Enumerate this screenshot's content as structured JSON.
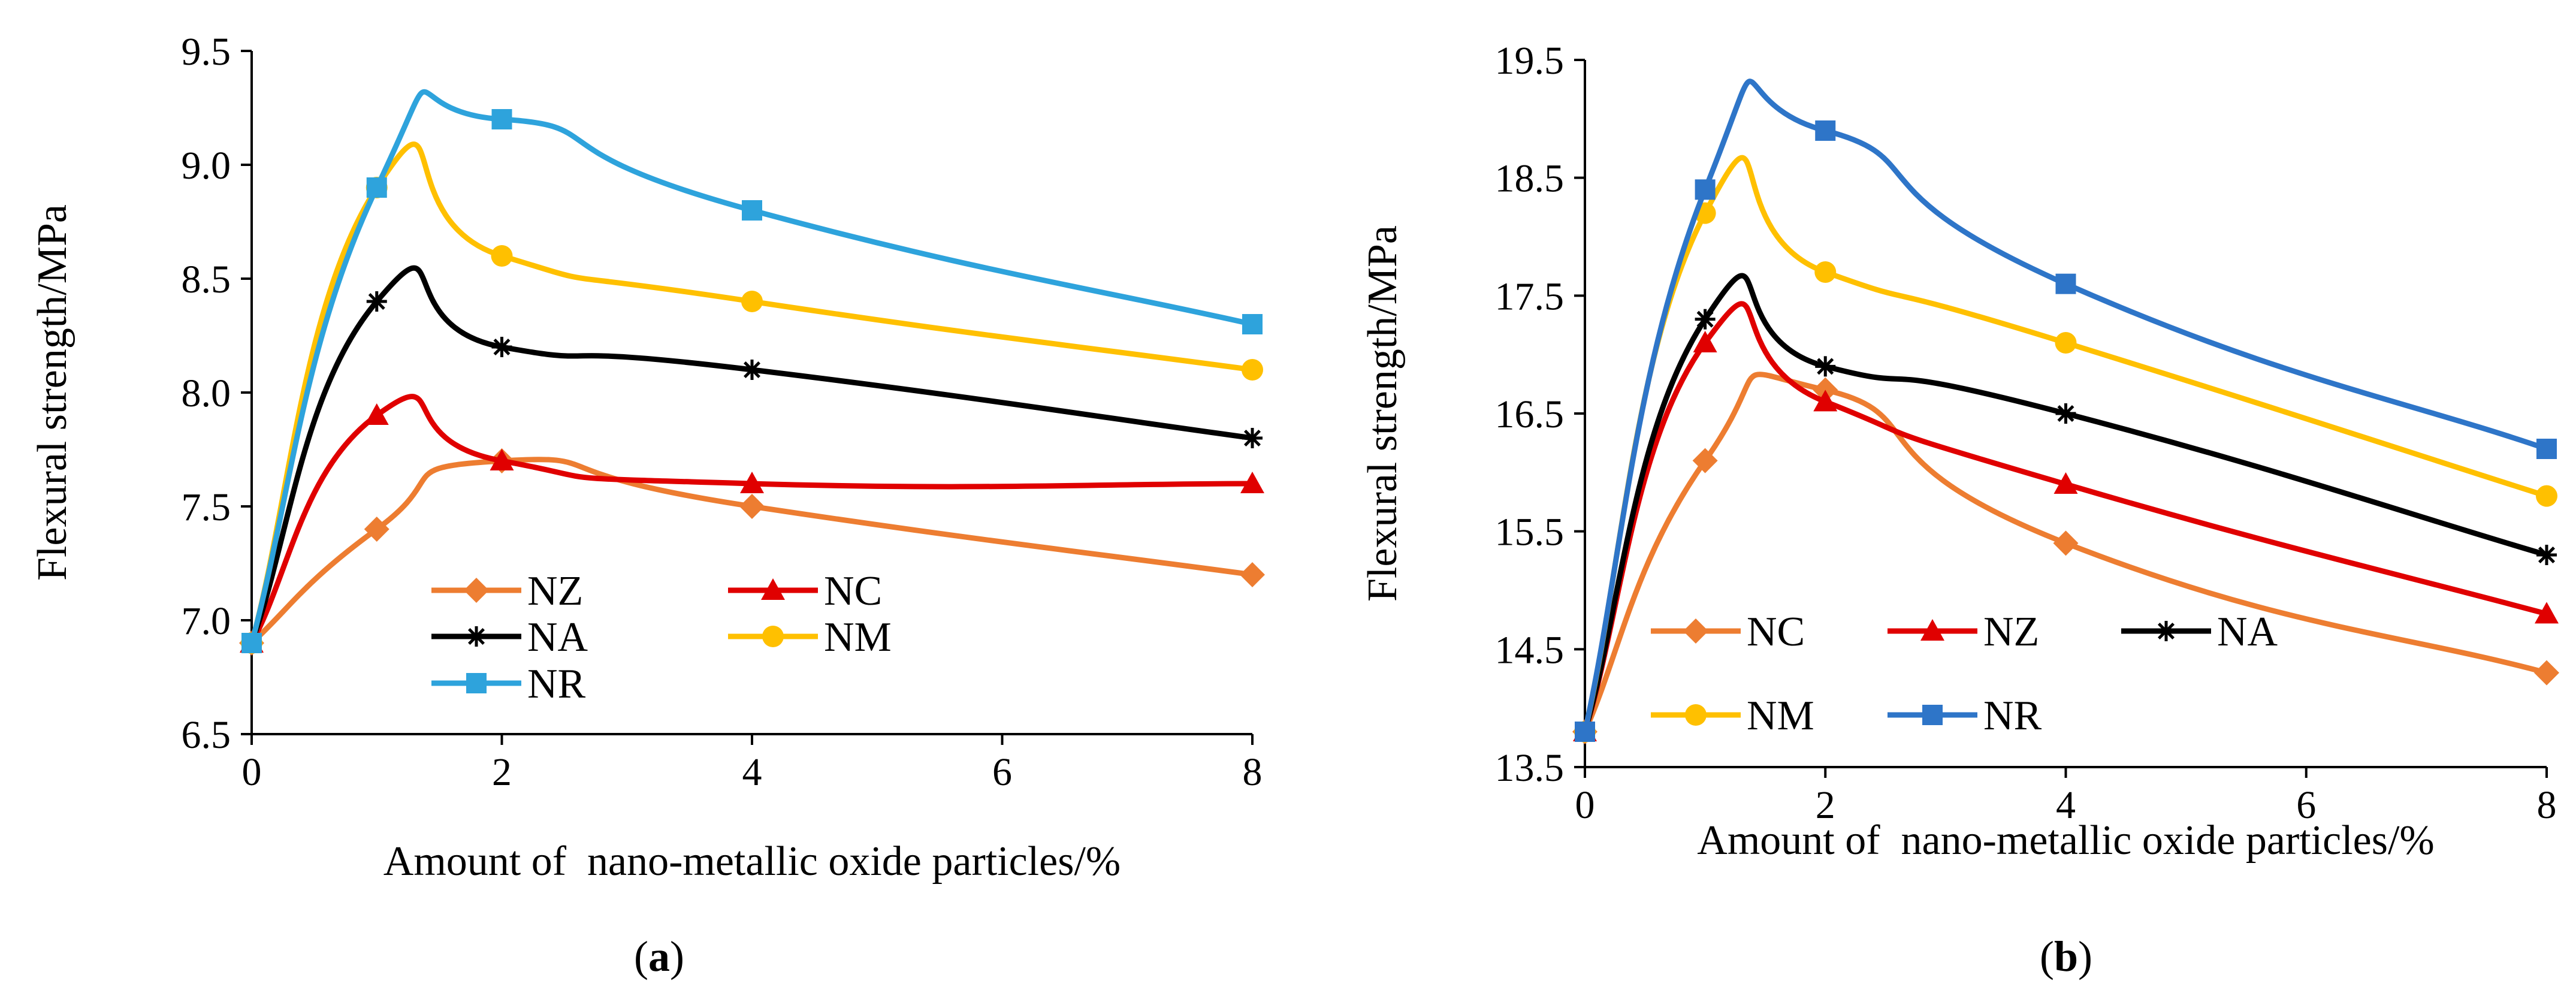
{
  "chart_data": [
    {
      "panel": "(a)",
      "panel_label": "a",
      "type": "line",
      "xlabel": "Amount of  nano-metallic oxide particles/%",
      "ylabel": "Flexural strength/MPa",
      "x": [
        0,
        1,
        2,
        4,
        8
      ],
      "xlim": [
        0,
        8
      ],
      "ylim": [
        6.5,
        9.5
      ],
      "xticks": [
        "0",
        "2",
        "4",
        "6",
        "8"
      ],
      "yticks": [
        "6.5",
        "7.0",
        "7.5",
        "8.0",
        "8.5",
        "9.0",
        "9.5"
      ],
      "grid": false,
      "series": [
        {
          "name": "NZ",
          "color": "#ED7D31",
          "marker": "diamond",
          "values": [
            6.9,
            7.4,
            7.7,
            7.5,
            7.2
          ]
        },
        {
          "name": "NC",
          "color": "#E00000",
          "marker": "triangle",
          "values": [
            6.9,
            7.9,
            7.7,
            7.6,
            7.6
          ]
        },
        {
          "name": "NA",
          "color": "#000000",
          "marker": "asterisk",
          "values": [
            6.9,
            8.4,
            8.2,
            8.1,
            7.8
          ]
        },
        {
          "name": "NM",
          "color": "#FFC000",
          "marker": "circle",
          "values": [
            6.9,
            8.9,
            8.6,
            8.4,
            8.1
          ]
        },
        {
          "name": "NR",
          "color": "#2EA3DC",
          "marker": "square",
          "values": [
            6.9,
            8.9,
            9.2,
            8.8,
            8.3
          ]
        }
      ]
    },
    {
      "panel": "(b)",
      "panel_label": "b",
      "type": "line",
      "xlabel": "Amount of  nano-metallic oxide particles/%",
      "ylabel": "Flexural strength/MPa",
      "x": [
        0,
        1,
        2,
        4,
        8
      ],
      "xlim": [
        0,
        8
      ],
      "ylim": [
        13.5,
        19.5
      ],
      "xticks": [
        "0",
        "2",
        "4",
        "6",
        "8"
      ],
      "yticks": [
        "13.5",
        "14.5",
        "15.5",
        "16.5",
        "17.5",
        "18.5",
        "19.5"
      ],
      "grid": false,
      "series": [
        {
          "name": "NC",
          "color": "#ED7D31",
          "marker": "diamond",
          "values": [
            13.8,
            16.1,
            16.7,
            15.4,
            14.3
          ]
        },
        {
          "name": "NZ",
          "color": "#E00000",
          "marker": "triangle",
          "values": [
            13.8,
            17.1,
            16.6,
            15.9,
            14.8
          ]
        },
        {
          "name": "NA",
          "color": "#000000",
          "marker": "asterisk",
          "values": [
            13.8,
            17.3,
            16.9,
            16.5,
            15.3
          ]
        },
        {
          "name": "NM",
          "color": "#FFC000",
          "marker": "circle",
          "values": [
            13.8,
            18.2,
            17.7,
            17.1,
            15.8
          ]
        },
        {
          "name": "NR",
          "color": "#2E75C8",
          "marker": "square",
          "values": [
            13.8,
            18.4,
            18.9,
            17.6,
            16.2
          ]
        }
      ]
    }
  ]
}
